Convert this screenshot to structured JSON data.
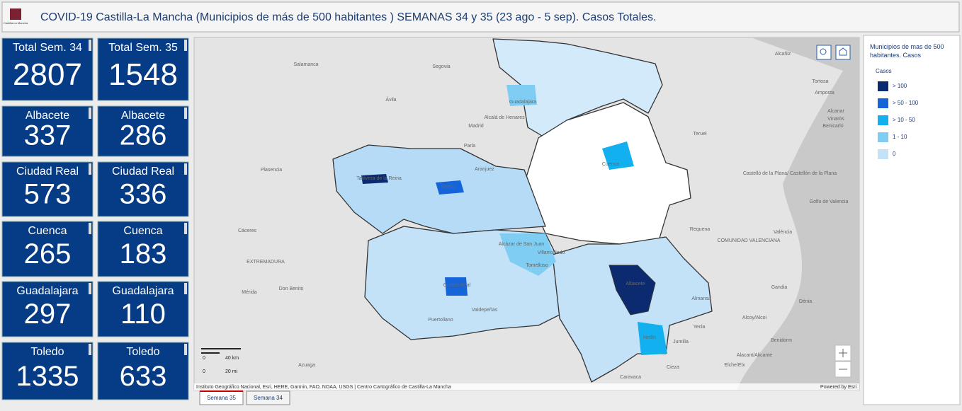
{
  "header": {
    "title": "COVID-19 Castilla-La Mancha (Municipios de más de 500 habitantes ) SEMANAS 34 y 35 (23 ago - 5 sep). Casos Totales.",
    "logo_text": "Castilla-La Mancha"
  },
  "cards": [
    {
      "label": "Total Sem. 34",
      "value": 2807
    },
    {
      "label": "Total Sem. 35",
      "value": 1548
    },
    {
      "label": "Albacete",
      "value": 337
    },
    {
      "label": "Albacete",
      "value": 286
    },
    {
      "label": "Ciudad Real",
      "value": 573
    },
    {
      "label": "Ciudad Real",
      "value": 336
    },
    {
      "label": "Cuenca",
      "value": 265
    },
    {
      "label": "Cuenca",
      "value": 183
    },
    {
      "label": "Guadalajara",
      "value": 297
    },
    {
      "label": "Guadalajara",
      "value": 110
    },
    {
      "label": "Toledo",
      "value": 1335
    },
    {
      "label": "Toledo",
      "value": 633
    }
  ],
  "map": {
    "places": [
      "Salamanca",
      "Segovia",
      "Alcañiz",
      "Tortosa",
      "Amposta",
      "Ávila",
      "Guadalajara",
      "Alcalá de Henares",
      "Madrid",
      "Teruel",
      "Alcanar",
      "Vinaròs",
      "Benicarló",
      "Parla",
      "Plasencia",
      "Talavera de la Reina",
      "Toledo",
      "Aranjuez",
      "Cuenca",
      "Castelló de la Plana/ Castellón de la Plana",
      "Golfo de Valencia",
      "Cáceres",
      "Requena",
      "València",
      "COMUNIDAD VALENCIANA",
      "Alcázar de San Juan",
      "Villarrobledo",
      "Tomelloso",
      "EXTREMADURA",
      "Albacete",
      "Mérida",
      "Don Benito",
      "Ciudad Real",
      "Almansa",
      "Gandia",
      "Dénia",
      "Valdepeñas",
      "Puertollano",
      "Yecla",
      "Alcoy/Alcoi",
      "Hellín",
      "Jumilla",
      "Benidorm",
      "Alacant/Alicante",
      "Elche/Elx",
      "Azuaga",
      "Cieza",
      "Caravaca"
    ],
    "scale": [
      "0",
      "40 km",
      "0",
      "20 mi"
    ],
    "attribution": "Instituto Geográfico Nacional, Esri, HERE, Garmin, FAO, NOAA, USGS | Centro Cartográfico de Castilla-La Mancha",
    "powered_by": "Powered by Esri"
  },
  "legend": {
    "title": "Municipios de mas de 500 habitantes. Casos",
    "subtitle": "Casos",
    "items": [
      {
        "label": "> 100",
        "color": "#0b2a6f"
      },
      {
        "label": "> 50 - 100",
        "color": "#1664d9"
      },
      {
        "label": "> 10 - 50",
        "color": "#12b0ef"
      },
      {
        "label": "1 - 10",
        "color": "#7fcdf3"
      },
      {
        "label": "0",
        "color": "#c3e2f8"
      }
    ]
  },
  "tabs": [
    "Semana 35",
    "Semana 34"
  ]
}
